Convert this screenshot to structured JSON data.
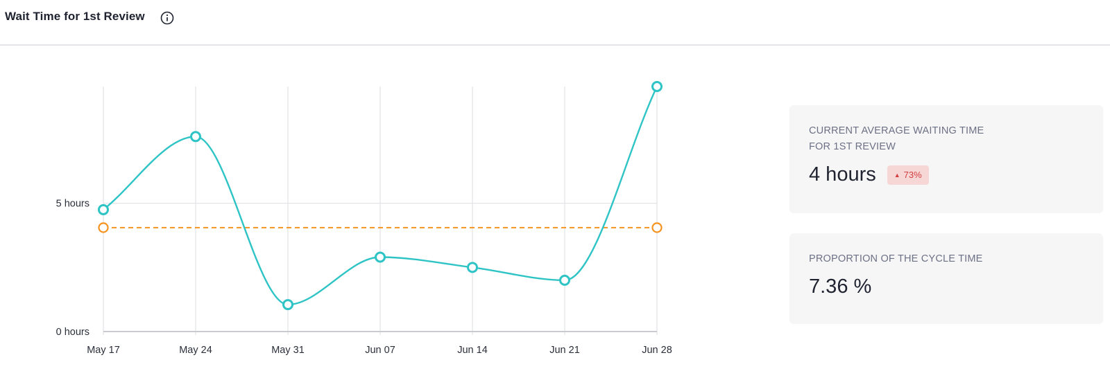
{
  "header": {
    "title": "Wait Time for 1st Review",
    "info_icon": "info-circle-icon"
  },
  "chart_data": {
    "type": "line",
    "x": [
      "May 17",
      "May 24",
      "May 31",
      "Jun 07",
      "Jun 14",
      "Jun 21",
      "Jun 28"
    ],
    "series": [
      {
        "values": [
          4.75,
          7.6,
          1.05,
          2.9,
          2.5,
          2.0,
          9.55
        ],
        "color": "#2ec4c6",
        "style": "smooth"
      }
    ],
    "average": {
      "value": 4.05,
      "color": "#f5921e",
      "style": "dashed"
    },
    "ylim": [
      0,
      9.55
    ],
    "y_ticks": [
      {
        "value": 0,
        "label": "0 hours"
      },
      {
        "value": 5,
        "label": "5 hours"
      }
    ],
    "grid": true
  },
  "cards": [
    {
      "label_lines": [
        "CURRENT AVERAGE WAITING TIME",
        "FOR 1ST REVIEW"
      ],
      "value": "4 hours",
      "badge": {
        "text": "73%",
        "icon": "triangle-up-icon",
        "color": "#d23e3e"
      }
    },
    {
      "label_lines": [
        "PROPORTION OF THE CYCLE TIME"
      ],
      "value": "7.36 %"
    }
  ]
}
